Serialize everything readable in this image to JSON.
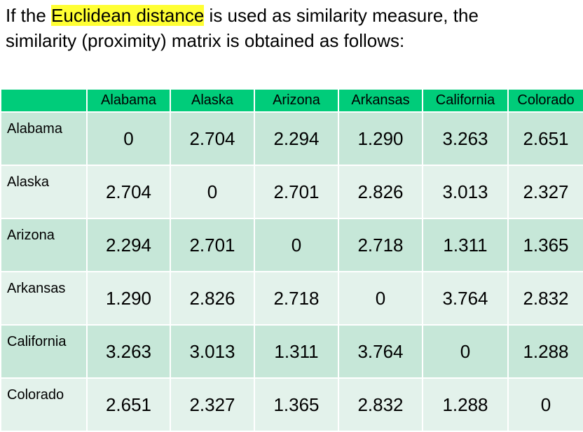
{
  "intro": {
    "line1_start": "If the ",
    "highlight": "Euclidean distance",
    "line1_end": " is used as similarity measure, the",
    "line2": "similarity (proximity) matrix is obtained as follows:"
  },
  "table": {
    "columns": [
      "Alabama",
      "Alaska",
      "Arizona",
      "Arkansas",
      "California",
      "Colorado"
    ],
    "rows": [
      {
        "label": "Alabama",
        "cells": [
          "0",
          "2.704",
          "2.294",
          "1.290",
          "3.263",
          "2.651"
        ]
      },
      {
        "label": "Alaska",
        "cells": [
          "2.704",
          "0",
          "2.701",
          "2.826",
          "3.013",
          "2.327"
        ]
      },
      {
        "label": "Arizona",
        "cells": [
          "2.294",
          "2.701",
          "0",
          "2.718",
          "1.311",
          "1.365"
        ]
      },
      {
        "label": "Arkansas",
        "cells": [
          "1.290",
          "2.826",
          "2.718",
          "0",
          "3.764",
          "2.832"
        ]
      },
      {
        "label": "California",
        "cells": [
          "3.263",
          "3.013",
          "1.311",
          "3.764",
          "0",
          "1.288"
        ]
      },
      {
        "label": "Colorado",
        "cells": [
          "2.651",
          "2.327",
          "1.365",
          "2.832",
          "1.288",
          "0"
        ]
      }
    ]
  }
}
